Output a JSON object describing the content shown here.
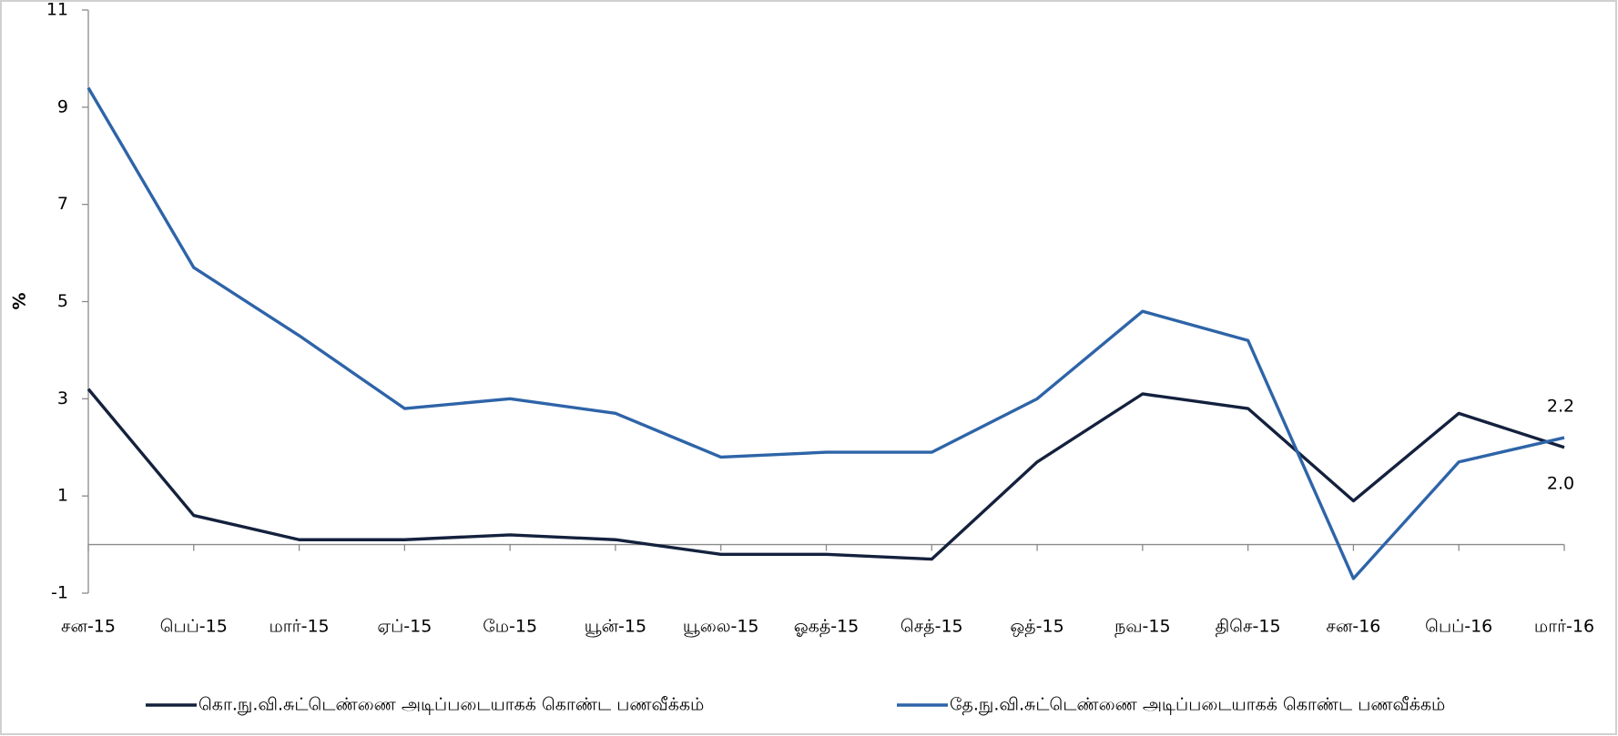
{
  "chart_data": {
    "type": "line",
    "y_label": "%",
    "categories": [
      "சன-15",
      "பெப்-15",
      "மார்-15",
      "ஏப்-15",
      "மே-15",
      "யூன்-15",
      "யூலை-15",
      "ஓகத்-15",
      "செத்-15",
      "ஒத்-15",
      "நவ-15",
      "திசெ-15",
      "சன-16",
      "பெப்-16",
      "மார்-16"
    ],
    "series": [
      {
        "name": "கொ.நு.வி.சுட்டெண்ணை அடிப்படையாகக் கொண்ட பணவீக்கம்",
        "color": "#14213d",
        "values": [
          3.2,
          0.6,
          0.1,
          0.1,
          0.2,
          0.1,
          -0.2,
          -0.2,
          -0.3,
          1.7,
          3.1,
          2.8,
          0.9,
          2.7,
          2.0
        ],
        "value_labels": [
          null,
          null,
          null,
          null,
          null,
          null,
          null,
          null,
          null,
          null,
          null,
          null,
          null,
          null,
          "2.0"
        ]
      },
      {
        "name": "தே.நு.வி.சுட்டெண்ணை அடிப்படையாகக் கொண்ட பணவீக்கம்",
        "color": "#2e64a8",
        "values": [
          9.4,
          5.7,
          4.3,
          2.8,
          3.0,
          2.7,
          1.8,
          1.9,
          1.9,
          3.0,
          4.8,
          4.2,
          -0.7,
          1.7,
          2.2
        ],
        "value_labels": [
          null,
          null,
          null,
          null,
          null,
          null,
          null,
          null,
          null,
          null,
          null,
          null,
          null,
          null,
          "2.2"
        ]
      }
    ],
    "ylim": [
      -1,
      11
    ],
    "yticks": [
      -1,
      1,
      3,
      5,
      7,
      9,
      11
    ],
    "grid": false,
    "legend": "bottom"
  }
}
